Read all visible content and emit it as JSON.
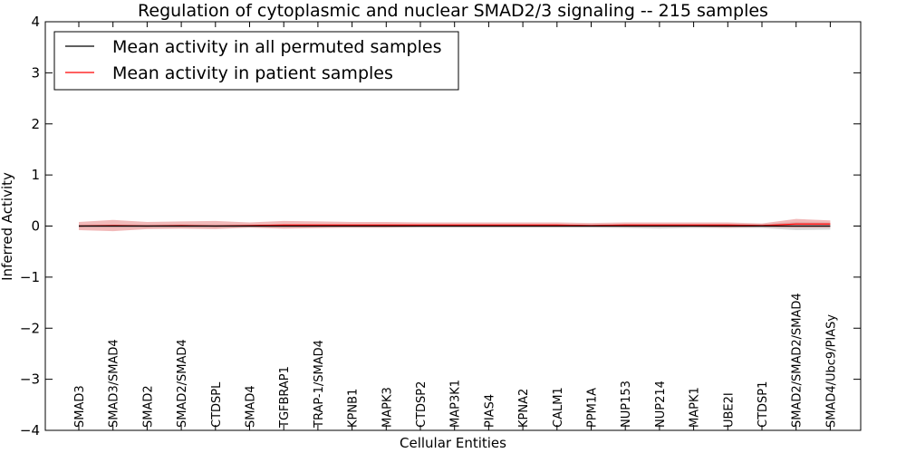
{
  "chart_data": {
    "type": "line",
    "title": "Regulation of cytoplasmic and nuclear SMAD2/3 signaling -- 215 samples",
    "xlabel": "Cellular Entities",
    "ylabel": "Inferred Activity",
    "ylim": [
      -4,
      4
    ],
    "yticks": [
      4,
      3,
      2,
      1,
      0,
      -1,
      -2,
      -3,
      -4
    ],
    "ytick_labels": [
      "4",
      "3",
      "2",
      "1",
      "0",
      "−1",
      "−2",
      "−3",
      "−4"
    ],
    "categories": [
      "SMAD3",
      "SMAD3/SMAD4",
      "SMAD2",
      "SMAD2/SMAD4",
      "CTDSPL",
      "SMAD4",
      "TGFBRAP1",
      "TRAP-1/SMAD4",
      "KPNB1",
      "MAPK3",
      "CTDSP2",
      "MAP3K1",
      "PIAS4",
      "KPNA2",
      "CALM1",
      "PPM1A",
      "NUP153",
      "NUP214",
      "MAPK1",
      "UBE2I",
      "CTDSP1",
      "SMAD2/SMAD2/SMAD4",
      "SMAD4/Ubc9/PIASy"
    ],
    "series": [
      {
        "name": "Mean activity in all permuted samples",
        "color": "#000000",
        "values": [
          0,
          0,
          0,
          0,
          0,
          0,
          0,
          0,
          0,
          0,
          0,
          0,
          0,
          0,
          0,
          0,
          0,
          0,
          0,
          0,
          0,
          0,
          0
        ],
        "band_lower": [
          -0.03,
          -0.03,
          -0.03,
          -0.03,
          -0.03,
          -0.03,
          -0.03,
          -0.03,
          -0.03,
          -0.03,
          -0.03,
          -0.03,
          -0.03,
          -0.03,
          -0.03,
          -0.03,
          -0.04,
          -0.05,
          -0.04,
          -0.04,
          -0.04,
          -0.08,
          -0.07
        ],
        "band_upper": [
          0.03,
          0.03,
          0.03,
          0.03,
          0.03,
          0.03,
          0.03,
          0.03,
          0.03,
          0.03,
          0.03,
          0.03,
          0.03,
          0.03,
          0.03,
          0.03,
          0.04,
          0.04,
          0.04,
          0.04,
          0.04,
          0.08,
          0.07
        ],
        "band_color": "#cccccc"
      },
      {
        "name": "Mean activity in patient samples",
        "color": "#ff0000",
        "values": [
          0.0,
          0.01,
          0.0,
          0.01,
          0.0,
          0.01,
          0.02,
          0.02,
          0.02,
          0.02,
          0.02,
          0.02,
          0.02,
          0.02,
          0.02,
          0.01,
          0.02,
          0.02,
          0.02,
          0.02,
          0.01,
          0.04,
          0.04
        ],
        "band_lower": [
          -0.08,
          -0.1,
          -0.06,
          -0.05,
          -0.06,
          -0.03,
          -0.05,
          -0.04,
          -0.03,
          -0.03,
          -0.02,
          -0.02,
          -0.02,
          -0.02,
          -0.02,
          -0.02,
          -0.02,
          -0.02,
          -0.02,
          -0.03,
          -0.02,
          -0.03,
          -0.03
        ],
        "band_upper": [
          0.08,
          0.12,
          0.08,
          0.09,
          0.1,
          0.07,
          0.1,
          0.09,
          0.08,
          0.08,
          0.07,
          0.07,
          0.07,
          0.07,
          0.07,
          0.06,
          0.07,
          0.07,
          0.07,
          0.07,
          0.05,
          0.14,
          0.11
        ],
        "band_color": "#e88a8a"
      }
    ],
    "legend_position": "top-left",
    "grid": false
  }
}
